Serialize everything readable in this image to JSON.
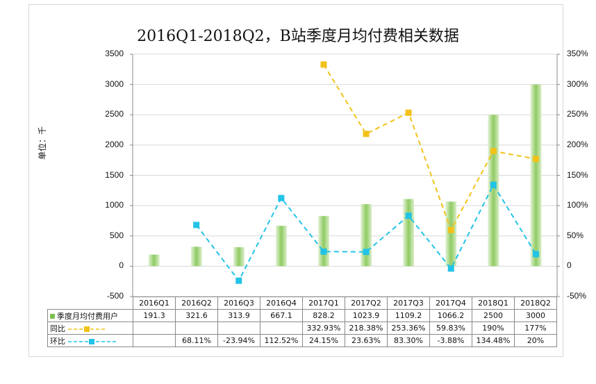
{
  "chart_data": {
    "type": "bar+line",
    "title": "2016Q1-2018Q2，B站季度月均付费相关数据",
    "ylabel": "单位：千",
    "categories": [
      "2016Q1",
      "2016Q2",
      "2016Q3",
      "2016Q4",
      "2017Q1",
      "2017Q2",
      "2017Q3",
      "2017Q4",
      "2018Q1",
      "2018Q2"
    ],
    "left_axis": {
      "ylim": [
        -500,
        3500
      ],
      "ticks": [
        "-500",
        "0",
        "500",
        "1000",
        "1500",
        "2000",
        "2500",
        "3000",
        "3500"
      ]
    },
    "right_axis": {
      "ylim": [
        -50,
        350
      ],
      "ticks": [
        "-50%",
        "0",
        "50%",
        "100%",
        "150%",
        "200%",
        "250%",
        "300%",
        "350%"
      ]
    },
    "series": [
      {
        "name": "季度月均付费用户",
        "kind": "bar",
        "axis": "left",
        "color": "#7cc04e",
        "values": [
          191.3,
          321.6,
          313.9,
          667.1,
          828.2,
          1023.9,
          1109.2,
          1066.2,
          2500,
          3000
        ],
        "labels": [
          "191.3",
          "321.6",
          "313.9",
          "667.1",
          "828.2",
          "1023.9",
          "1109.2",
          "1066.2",
          "2500",
          "3000"
        ]
      },
      {
        "name": "同比",
        "kind": "line",
        "axis": "right",
        "color": "#f2c21b",
        "values": [
          null,
          null,
          null,
          null,
          332.93,
          218.38,
          253.36,
          59.83,
          190,
          177
        ],
        "labels": [
          "",
          "",
          "",
          "",
          "332.93%",
          "218.38%",
          "253.36%",
          "59.83%",
          "190%",
          "177%"
        ]
      },
      {
        "name": "环比",
        "kind": "line",
        "axis": "right",
        "color": "#22c3e6",
        "values": [
          null,
          68.11,
          -23.94,
          112.52,
          24.15,
          23.63,
          83.3,
          -3.88,
          134.48,
          20
        ],
        "labels": [
          "",
          "68.11%",
          "-23.94%",
          "112.52%",
          "24.15%",
          "23.63%",
          "83.30%",
          "-3.88%",
          "134.48%",
          "20%"
        ]
      }
    ]
  }
}
